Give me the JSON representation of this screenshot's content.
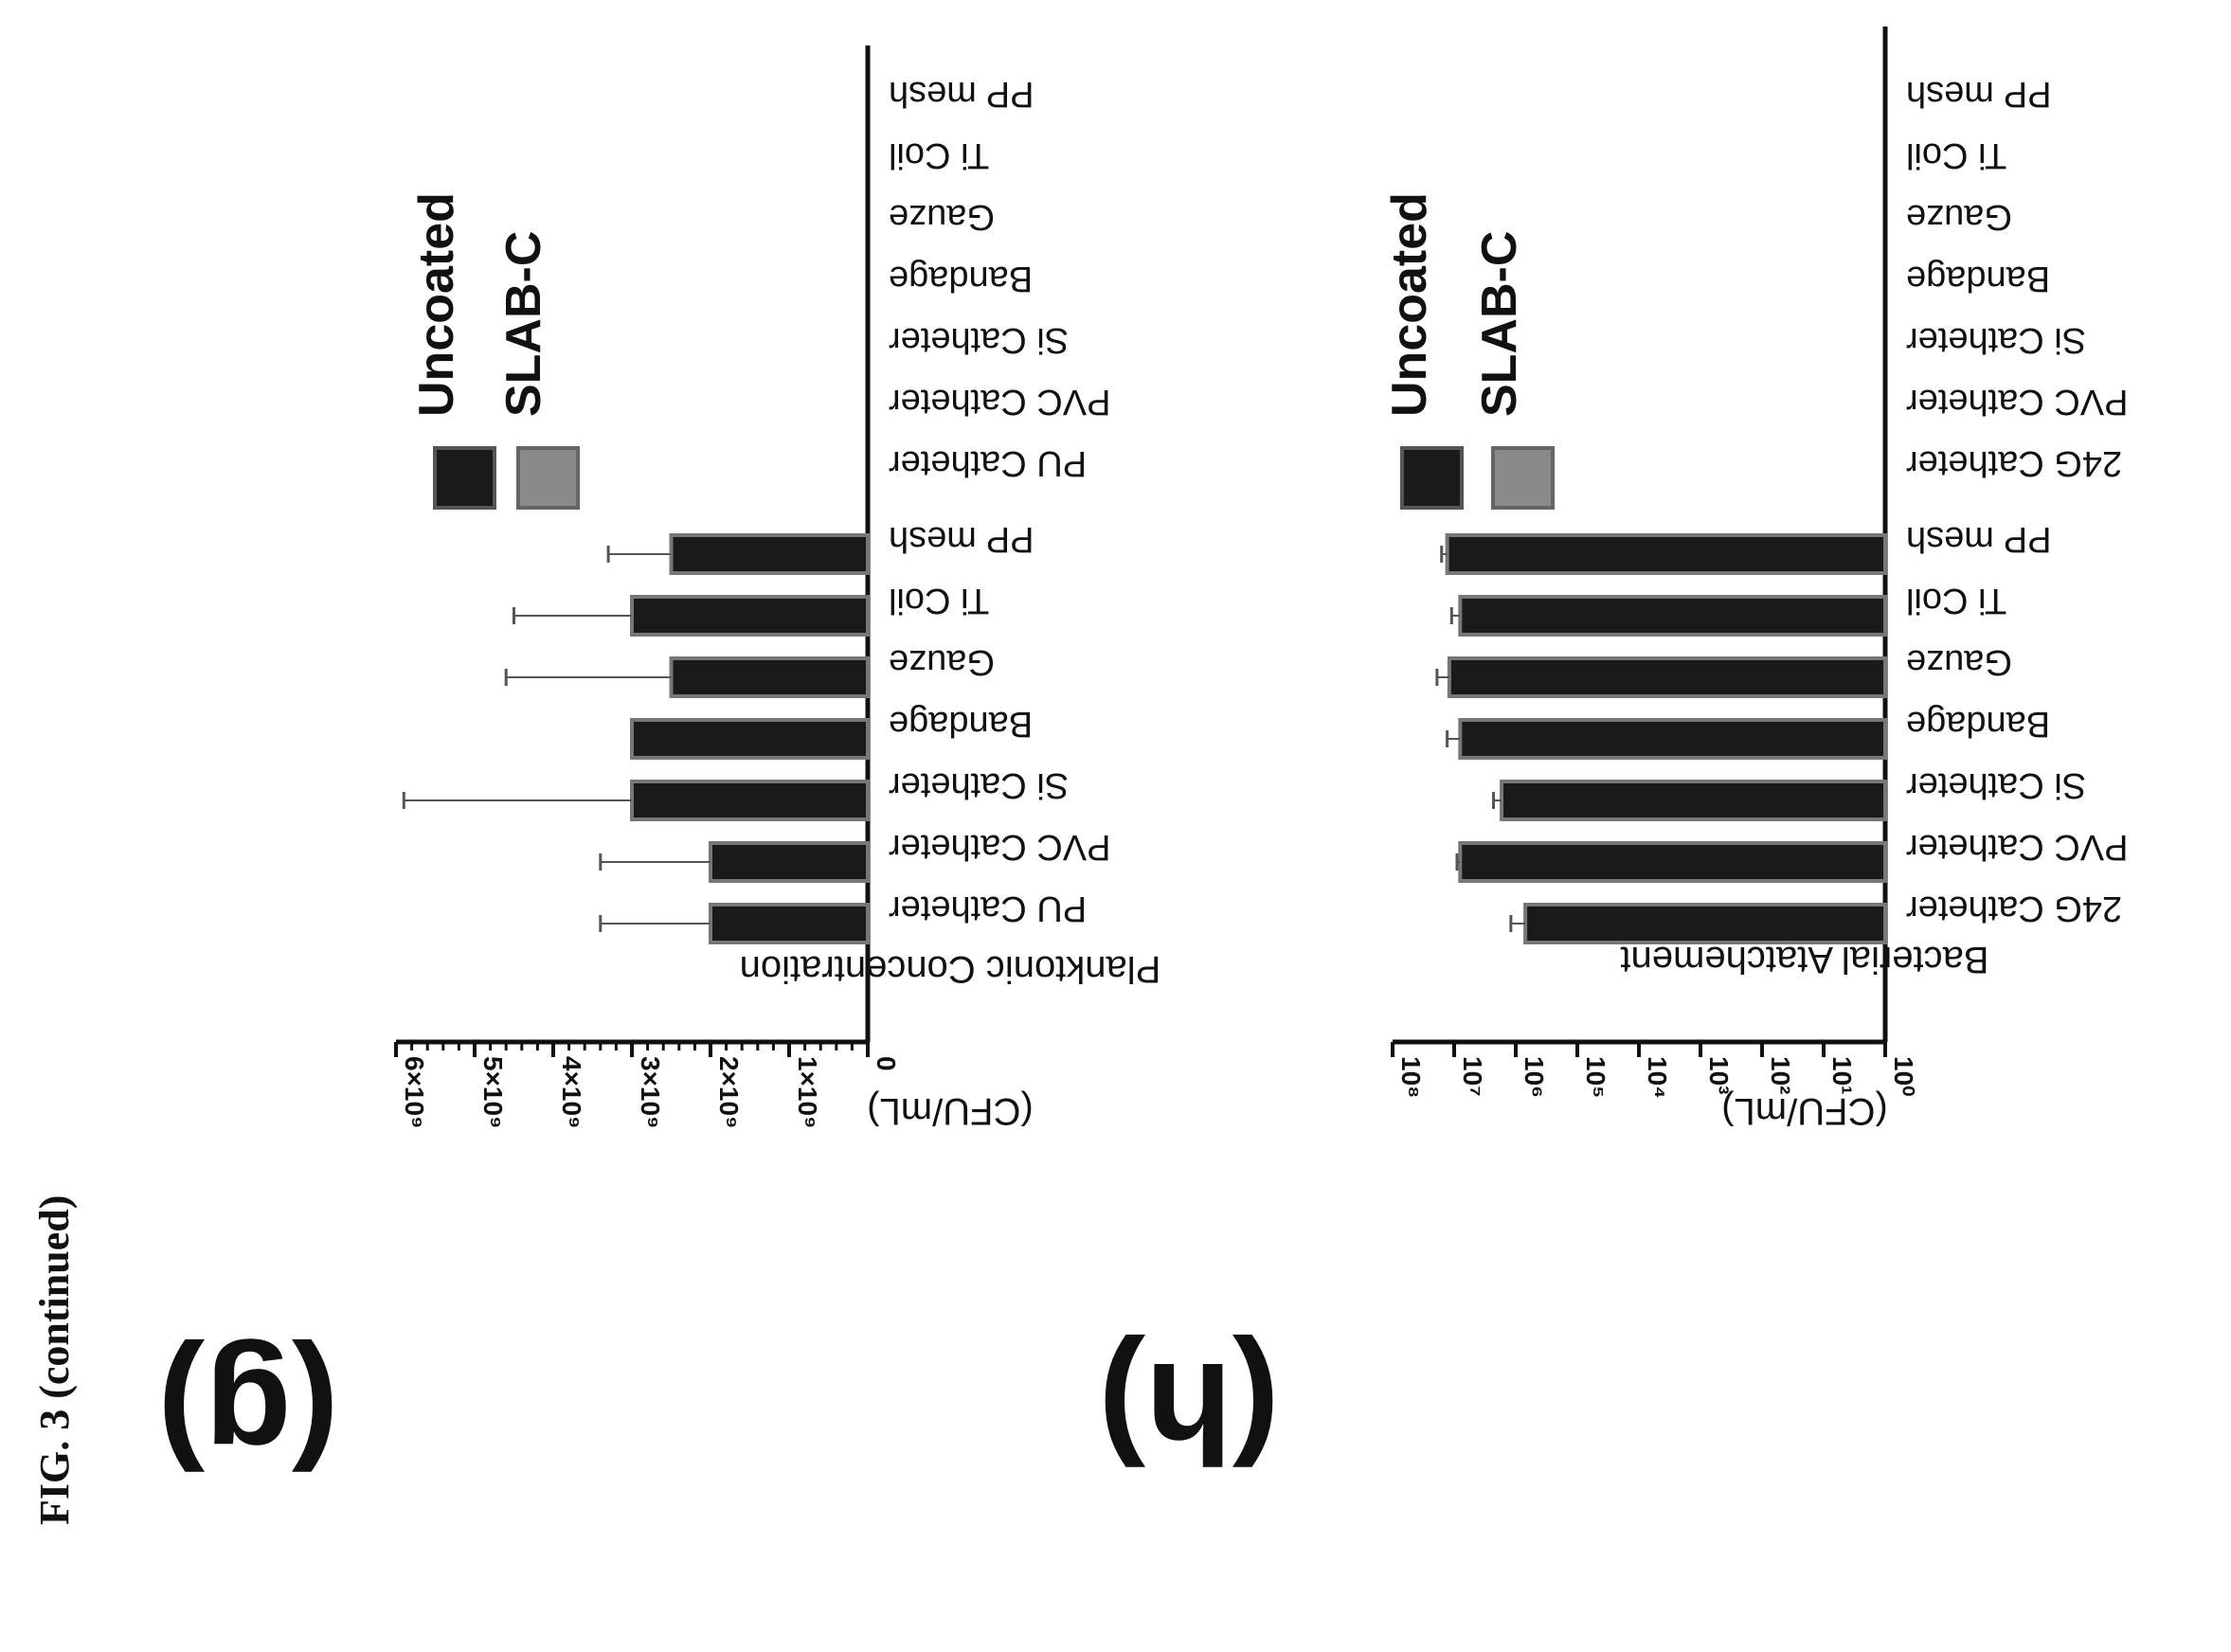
{
  "figure_title": "FIG. 3 (continued)",
  "colors": {
    "uncoated": "#1a1a1a",
    "slab_c": "#8a8a8a",
    "axis": "#111111"
  },
  "chart_data": [
    {
      "panel": "(g)",
      "type": "bar",
      "ylabel": "Planktonic Concentration",
      "ylabel2": "(CFU/mL)",
      "yscale": "linear",
      "ylim": [
        0,
        6000000000
      ],
      "ticks": [
        0,
        1000000000,
        2000000000,
        3000000000,
        4000000000,
        5000000000,
        6000000000
      ],
      "tick_labels": [
        "0",
        "1×10⁹",
        "2×10⁹",
        "3×10⁹",
        "4×10⁹",
        "5×10⁹",
        "6×10⁹"
      ],
      "legend": [
        "Uncoated",
        "SLAB-C"
      ],
      "series": [
        {
          "name": "Uncoated",
          "categories": [
            "PU Catheter",
            "PVC Catheter",
            "Si Catheter",
            "Bandage",
            "Gauze",
            "Ti Coil",
            "PP mesh"
          ],
          "values": [
            2000000000,
            2000000000,
            3000000000,
            3000000000,
            2500000000,
            3000000000,
            2500000000
          ],
          "errors": [
            1400000000,
            1400000000,
            2900000000,
            0,
            2100000000,
            1500000000,
            800000000
          ]
        },
        {
          "name": "SLAB-C",
          "categories": [
            "PU Catheter",
            "PVC Catheter",
            "Si Catheter",
            "Bandage",
            "Gauze",
            "Ti Coil",
            "PP mesh"
          ],
          "values": [
            0,
            0,
            0,
            0,
            0,
            0,
            0
          ],
          "errors": [
            0,
            0,
            0,
            0,
            0,
            0,
            0
          ]
        }
      ]
    },
    {
      "panel": "(h)",
      "type": "bar",
      "ylabel": "Bacterial Atatchement",
      "ylabel2": "(CFU/mL)",
      "yscale": "log",
      "ylim": [
        1,
        100000000
      ],
      "ticks": [
        1,
        10,
        100,
        1000,
        10000,
        100000,
        1000000,
        10000000,
        100000000
      ],
      "tick_labels": [
        "10⁰",
        "10¹",
        "10²",
        "10³",
        "10⁴",
        "10⁵",
        "10⁶",
        "10⁷",
        "10⁸"
      ],
      "legend": [
        "Uncoated",
        "SLAB-C"
      ],
      "series": [
        {
          "name": "Uncoated",
          "categories": [
            "24G Catheter",
            "PVC Catheter",
            "Si Catheter",
            "Bandage",
            "Gauze",
            "Ti Coil",
            "PP mesh"
          ],
          "values": [
            700000,
            8000000,
            1700000,
            8000000,
            12000000,
            8000000,
            13000000
          ],
          "errors": [
            500000,
            1000000,
            600000,
            5000000,
            7000000,
            3000000,
            3000000
          ]
        },
        {
          "name": "SLAB-C",
          "categories": [
            "24G Catheter",
            "PVC Catheter",
            "Si Catheter",
            "Bandage",
            "Gauze",
            "Ti Coil",
            "PP mesh"
          ],
          "values": [
            1,
            1,
            1,
            1,
            1,
            1,
            1
          ],
          "errors": [
            0,
            0,
            0,
            0,
            0,
            0,
            0
          ]
        }
      ]
    }
  ]
}
